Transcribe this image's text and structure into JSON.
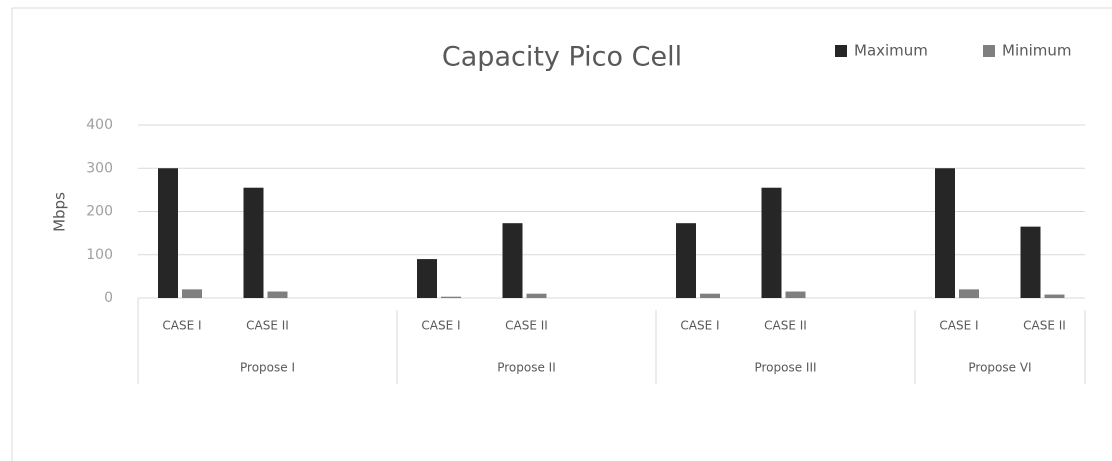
{
  "chart_data": {
    "type": "bar",
    "title": "Capacity Pico Cell",
    "y_label": "Mbps",
    "categories": [
      "CASE I",
      "CASE II",
      "CASE I",
      "CASE II",
      "CASE I",
      "CASE II",
      "CASE I",
      "CASE II"
    ],
    "groups": [
      "Propose I",
      "Propose II",
      "Propose III",
      "Propose VI"
    ],
    "series": [
      {
        "name": "Maximum",
        "color": "#262626",
        "values": [
          300,
          255,
          90,
          173,
          173,
          255,
          300,
          165
        ]
      },
      {
        "name": "Minimum",
        "color": "#7f7f7f",
        "values": [
          20,
          15,
          3,
          10,
          10,
          15,
          20,
          8
        ]
      }
    ],
    "ylim": [
      0,
      400
    ],
    "yticks": [
      0,
      100,
      200,
      300,
      400
    ],
    "grid": true,
    "legend": "top-right"
  }
}
